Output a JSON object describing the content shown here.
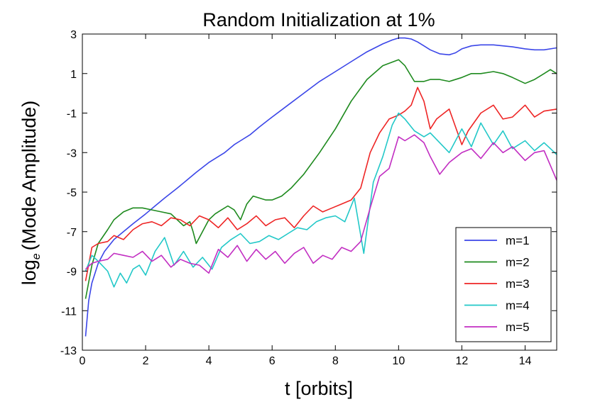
{
  "chart_data": {
    "type": "line",
    "title": "Random Initialization at 1%",
    "xlabel": "t [orbits]",
    "ylabel": "log_e (Mode Amplitude)",
    "ylabel_main": "log",
    "ylabel_sub": "e",
    "ylabel_rest": "(Mode Amplitude)",
    "xlim": [
      0,
      15
    ],
    "ylim": [
      -13,
      3
    ],
    "xticks": [
      0,
      2,
      4,
      6,
      8,
      10,
      12,
      14
    ],
    "xtick_labels": [
      "0",
      "2",
      "4",
      "6",
      "8",
      "10",
      "12",
      "14"
    ],
    "yticks": [
      3,
      1,
      -1,
      -3,
      -5,
      -7,
      -9,
      -11,
      -13
    ],
    "ytick_labels": [
      "3",
      "1",
      "-1",
      "-3",
      "-5",
      "-7",
      "-9",
      "-11",
      "-13"
    ],
    "grid": false,
    "legend_position": "lower-right",
    "series": [
      {
        "name": "m=1",
        "color": "#3b46e8",
        "x": [
          0.1,
          0.2,
          0.3,
          0.5,
          0.7,
          1.0,
          1.3,
          1.6,
          2.0,
          2.3,
          2.6,
          3.0,
          3.3,
          3.6,
          4.0,
          4.3,
          4.5,
          4.8,
          5.0,
          5.3,
          5.6,
          6.0,
          6.5,
          7.0,
          7.5,
          8.0,
          8.5,
          9.0,
          9.5,
          9.8,
          10.0,
          10.2,
          10.4,
          10.6,
          10.8,
          11.0,
          11.3,
          11.6,
          11.8,
          12.0,
          12.3,
          12.6,
          13.0,
          13.3,
          13.6,
          14.0,
          14.3,
          14.6,
          15.0
        ],
        "y": [
          -12.3,
          -10.5,
          -9.6,
          -8.6,
          -8.0,
          -7.4,
          -7.0,
          -6.6,
          -6.1,
          -5.7,
          -5.3,
          -4.8,
          -4.4,
          -4.0,
          -3.5,
          -3.2,
          -3.0,
          -2.6,
          -2.4,
          -2.1,
          -1.7,
          -1.2,
          -0.6,
          0.0,
          0.6,
          1.1,
          1.6,
          2.1,
          2.5,
          2.7,
          2.8,
          2.8,
          2.75,
          2.6,
          2.4,
          2.2,
          2.0,
          1.95,
          2.05,
          2.25,
          2.4,
          2.45,
          2.45,
          2.4,
          2.35,
          2.25,
          2.2,
          2.2,
          2.3
        ]
      },
      {
        "name": "m=2",
        "color": "#1e8a1e",
        "x": [
          0.1,
          0.3,
          0.5,
          0.8,
          1.0,
          1.3,
          1.6,
          1.9,
          2.2,
          2.5,
          2.8,
          3.0,
          3.2,
          3.4,
          3.5,
          3.6,
          3.8,
          4.0,
          4.2,
          4.4,
          4.6,
          4.8,
          5.0,
          5.2,
          5.4,
          5.6,
          5.8,
          6.0,
          6.3,
          6.6,
          7.0,
          7.5,
          8.0,
          8.5,
          9.0,
          9.5,
          10.0,
          10.2,
          10.5,
          10.8,
          11.0,
          11.3,
          11.6,
          12.0,
          12.3,
          12.6,
          13.0,
          13.3,
          13.6,
          14.0,
          14.3,
          14.6,
          14.8,
          15.0
        ],
        "y": [
          -10.4,
          -8.7,
          -7.6,
          -6.9,
          -6.4,
          -6.0,
          -5.8,
          -5.8,
          -5.9,
          -6.0,
          -6.1,
          -6.4,
          -6.7,
          -6.5,
          -7.0,
          -7.6,
          -7.0,
          -6.4,
          -6.1,
          -5.9,
          -5.7,
          -5.9,
          -6.4,
          -5.6,
          -5.2,
          -5.3,
          -5.4,
          -5.4,
          -5.2,
          -4.8,
          -4.1,
          -3.0,
          -1.8,
          -0.4,
          0.7,
          1.4,
          1.7,
          1.4,
          0.6,
          0.6,
          0.7,
          0.7,
          0.6,
          0.8,
          1.0,
          1.0,
          1.1,
          1.0,
          0.8,
          0.5,
          0.7,
          1.0,
          1.2,
          1.0
        ]
      },
      {
        "name": "m=3",
        "color": "#ee2525",
        "x": [
          0.1,
          0.3,
          0.5,
          0.8,
          1.0,
          1.3,
          1.6,
          1.9,
          2.2,
          2.5,
          2.8,
          3.1,
          3.4,
          3.7,
          4.0,
          4.3,
          4.6,
          4.9,
          5.2,
          5.5,
          5.8,
          6.1,
          6.4,
          6.7,
          7.0,
          7.3,
          7.6,
          7.9,
          8.2,
          8.5,
          8.8,
          9.1,
          9.4,
          9.7,
          10.0,
          10.2,
          10.4,
          10.6,
          10.8,
          11.0,
          11.2,
          11.6,
          12.0,
          12.2,
          12.6,
          13.0,
          13.3,
          13.6,
          14.0,
          14.3,
          14.6,
          15.0
        ],
        "y": [
          -9.5,
          -7.8,
          -7.6,
          -7.5,
          -7.2,
          -7.4,
          -6.9,
          -6.6,
          -6.5,
          -6.7,
          -6.3,
          -6.4,
          -6.7,
          -6.2,
          -6.4,
          -6.8,
          -6.3,
          -6.9,
          -6.6,
          -6.2,
          -6.7,
          -6.4,
          -6.3,
          -6.8,
          -6.2,
          -5.7,
          -6.0,
          -5.8,
          -5.6,
          -5.4,
          -4.8,
          -3.0,
          -2.0,
          -1.3,
          -1.1,
          -0.9,
          -0.6,
          0.3,
          -0.4,
          -1.8,
          -1.3,
          -0.8,
          -2.6,
          -1.9,
          -1.0,
          -0.6,
          -1.3,
          -1.2,
          -0.6,
          -1.2,
          -0.9,
          -0.8
        ]
      },
      {
        "name": "m=4",
        "color": "#22c8c8",
        "x": [
          0.1,
          0.3,
          0.5,
          0.8,
          1.0,
          1.2,
          1.4,
          1.6,
          1.8,
          2.0,
          2.3,
          2.6,
          2.9,
          3.2,
          3.5,
          3.8,
          4.1,
          4.4,
          4.7,
          5.0,
          5.3,
          5.6,
          5.9,
          6.2,
          6.5,
          6.8,
          7.1,
          7.4,
          7.7,
          8.0,
          8.3,
          8.6,
          8.9,
          9.2,
          9.5,
          9.8,
          10.0,
          10.2,
          10.5,
          10.8,
          11.0,
          11.3,
          11.6,
          12.0,
          12.3,
          12.6,
          13.0,
          13.3,
          13.6,
          14.0,
          14.3,
          14.6,
          15.0
        ],
        "y": [
          -9.0,
          -8.2,
          -8.5,
          -9.0,
          -9.8,
          -9.1,
          -9.6,
          -8.9,
          -8.7,
          -9.2,
          -8.0,
          -7.3,
          -8.7,
          -8.0,
          -8.8,
          -8.3,
          -8.9,
          -7.8,
          -7.4,
          -7.1,
          -7.6,
          -7.5,
          -7.2,
          -7.4,
          -7.1,
          -6.8,
          -6.9,
          -6.5,
          -6.3,
          -6.2,
          -6.5,
          -5.3,
          -8.1,
          -4.5,
          -3.2,
          -1.6,
          -1.0,
          -1.3,
          -1.9,
          -2.2,
          -2.0,
          -2.5,
          -3.0,
          -1.8,
          -2.7,
          -1.5,
          -2.6,
          -1.9,
          -2.8,
          -2.4,
          -2.9,
          -2.5,
          -3.1
        ]
      },
      {
        "name": "m=5",
        "color": "#c22ec2",
        "x": [
          0.1,
          0.3,
          0.5,
          0.8,
          1.0,
          1.3,
          1.6,
          1.9,
          2.2,
          2.5,
          2.8,
          3.1,
          3.4,
          3.7,
          4.0,
          4.3,
          4.6,
          4.9,
          5.2,
          5.5,
          5.8,
          6.1,
          6.4,
          6.7,
          7.0,
          7.3,
          7.6,
          7.9,
          8.2,
          8.5,
          8.8,
          9.1,
          9.4,
          9.7,
          10.0,
          10.2,
          10.5,
          10.8,
          11.0,
          11.3,
          11.6,
          12.0,
          12.3,
          12.6,
          13.0,
          13.3,
          13.6,
          14.0,
          14.3,
          14.6,
          15.0
        ],
        "y": [
          -8.9,
          -8.6,
          -8.5,
          -8.4,
          -8.1,
          -8.2,
          -8.3,
          -8.0,
          -8.5,
          -8.2,
          -8.8,
          -8.4,
          -8.6,
          -8.7,
          -9.1,
          -7.9,
          -8.3,
          -7.7,
          -8.5,
          -7.9,
          -8.4,
          -8.0,
          -8.6,
          -8.1,
          -7.8,
          -8.6,
          -8.2,
          -8.4,
          -7.8,
          -8.0,
          -7.5,
          -5.8,
          -4.2,
          -3.8,
          -2.2,
          -2.4,
          -2.1,
          -2.5,
          -3.2,
          -4.1,
          -3.5,
          -3.0,
          -2.8,
          -3.3,
          -2.5,
          -3.0,
          -2.7,
          -3.4,
          -3.0,
          -2.9,
          -4.4
        ]
      }
    ]
  }
}
